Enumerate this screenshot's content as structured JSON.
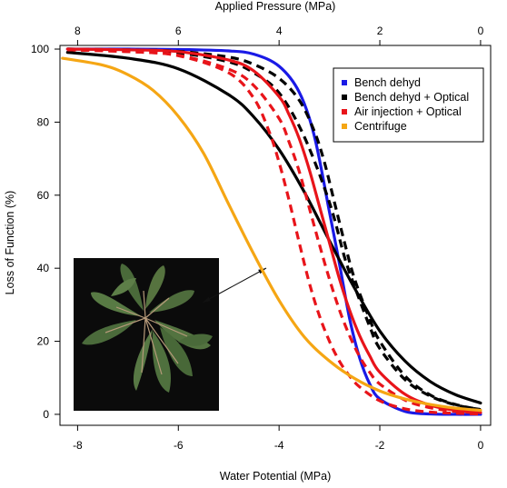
{
  "chart_data": {
    "type": "line",
    "title": "",
    "xlabel": "Water Potential (MPa)",
    "ylabel": "Loss of Function (%)",
    "x2label": "Applied Pressure (MPa)",
    "xlim": [
      -8.35,
      0.2
    ],
    "ylim": [
      -3,
      101
    ],
    "x_ticks": [
      -8,
      -6,
      -4,
      -2,
      0
    ],
    "x_tick_labels": [
      "-8",
      "-6",
      "-4",
      "-2",
      "0"
    ],
    "x2_tick_labels": [
      "8",
      "6",
      "4",
      "2",
      "0"
    ],
    "y_ticks": [
      0,
      20,
      40,
      60,
      80,
      100
    ],
    "y_tick_labels": [
      "0",
      "20",
      "40",
      "60",
      "80",
      "100"
    ],
    "grid": false,
    "legend_position": "top-right",
    "legend": [
      {
        "label": "Bench dehyd",
        "color": "#1a1ae6"
      },
      {
        "label": "Bench dehyd + Optical",
        "color": "#000000"
      },
      {
        "label": "Air injection + Optical",
        "color": "#e8141a"
      },
      {
        "label": "Centrifuge",
        "color": "#f5a614"
      }
    ],
    "series": [
      {
        "name": "Bench dehyd",
        "color": "#1a1ae6",
        "style": "solid",
        "x": [
          -8.2,
          -7,
          -6,
          -5,
          -4.5,
          -4,
          -3.6,
          -3.3,
          -3,
          -2.8,
          -2.6,
          -2.4,
          -2.2,
          -2,
          -1.5,
          -1,
          -0.5,
          0
        ],
        "y": [
          100,
          100,
          99.9,
          99.5,
          98.6,
          95.3,
          88.2,
          76.2,
          55.4,
          41.1,
          26.2,
          15.4,
          8.3,
          4.2,
          0.8,
          0.1,
          0,
          0
        ]
      },
      {
        "name": "Bench dehyd + Optical",
        "color": "#000000",
        "style": "solid",
        "x": [
          -8.2,
          -7,
          -6,
          -5,
          -4.5,
          -4,
          -3.5,
          -3,
          -2.5,
          -2,
          -1.5,
          -1,
          -0.5,
          0
        ],
        "y": [
          99.1,
          97.5,
          94.6,
          87.5,
          81.4,
          72.5,
          60.9,
          47.5,
          34.5,
          22.8,
          14.6,
          9.0,
          5.4,
          3.1
        ]
      },
      {
        "name": "",
        "color": "#000000",
        "style": "dashed",
        "x": [
          -8.2,
          -7,
          -6,
          -5,
          -4.5,
          -4,
          -3.5,
          -3,
          -2.7,
          -2.5,
          -2.2,
          -2,
          -1.5,
          -1,
          -0.5,
          0
        ],
        "y": [
          100,
          99.7,
          99,
          96.5,
          93.5,
          88,
          76,
          58,
          43,
          35,
          24,
          18,
          9.5,
          5,
          2.6,
          1.3
        ]
      },
      {
        "name": "",
        "color": "#000000",
        "style": "dashed",
        "x": [
          -8.2,
          -7,
          -6,
          -5,
          -4.5,
          -4,
          -3.6,
          -3.3,
          -3.1,
          -2.9,
          -2.7,
          -2.5,
          -2.2,
          -2,
          -1.5,
          -1,
          -0.5,
          0
        ],
        "y": [
          100,
          99.8,
          99.4,
          97.8,
          95.8,
          92,
          86,
          77.5,
          69,
          58,
          47,
          37,
          26,
          20,
          10.5,
          5.3,
          2.7,
          1.3
        ]
      },
      {
        "name": "Air injection + Optical",
        "color": "#e8141a",
        "style": "solid",
        "x": [
          -8.2,
          -7,
          -6,
          -5,
          -4.5,
          -4,
          -3.8,
          -3.6,
          -3.4,
          -3.2,
          -3,
          -2.8,
          -2.6,
          -2.4,
          -2.2,
          -2,
          -1.5,
          -1,
          -0.5,
          0
        ],
        "y": [
          100,
          99.8,
          99.3,
          97,
          94,
          87,
          82,
          75.5,
          67,
          57,
          47,
          37,
          28.5,
          21.5,
          16,
          11.5,
          5.5,
          2.5,
          1.1,
          0.5
        ]
      },
      {
        "name": "",
        "color": "#e8141a",
        "style": "dashed",
        "x": [
          -8.2,
          -7,
          -6,
          -5,
          -4.5,
          -4,
          -3.8,
          -3.6,
          -3.4,
          -3.2,
          -3,
          -2.8,
          -2.6,
          -2.4,
          -2.2,
          -2,
          -1.5,
          -1,
          -0.5,
          0
        ],
        "y": [
          99.8,
          99.3,
          98.3,
          94.5,
          90,
          81,
          74.5,
          66.5,
          56.5,
          46.5,
          37,
          28.5,
          21.5,
          15.8,
          11.5,
          8.3,
          3.9,
          1.8,
          0.8,
          0.4
        ]
      },
      {
        "name": "",
        "color": "#e8141a",
        "style": "dashed",
        "x": [
          -8.2,
          -7,
          -6,
          -5,
          -4.5,
          -4.2,
          -4,
          -3.8,
          -3.6,
          -3.4,
          -3.2,
          -3,
          -2.8,
          -2.6,
          -2.4,
          -2,
          -1.5,
          -1,
          -0.5,
          0
        ],
        "y": [
          99.8,
          99.3,
          98.2,
          93.5,
          86.5,
          77.5,
          69,
          58.5,
          47,
          36,
          27,
          20,
          14.5,
          10.5,
          7.5,
          3.7,
          1.5,
          0.6,
          0.3,
          0.1
        ]
      },
      {
        "name": "Centrifuge",
        "color": "#f5a614",
        "style": "solid",
        "x": [
          -8.3,
          -7.5,
          -7,
          -6.5,
          -6,
          -5.5,
          -5,
          -4.5,
          -4,
          -3.5,
          -3,
          -2.5,
          -2,
          -1.5,
          -1,
          -0.5,
          0
        ],
        "y": [
          97.5,
          95.6,
          93,
          88.7,
          81.6,
          71.5,
          57.5,
          43.8,
          31.2,
          21.2,
          14.6,
          9.8,
          6.4,
          4.2,
          2.7,
          1.7,
          1.1
        ]
      }
    ],
    "inset": {
      "description": "photo of oak leaves on black background",
      "arrow_to_x": -4.2,
      "arrow_to_y": 42
    }
  }
}
